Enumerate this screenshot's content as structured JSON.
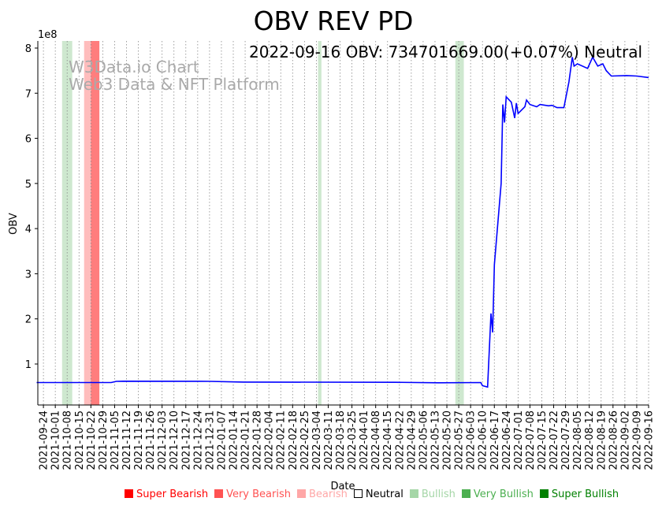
{
  "chart_data": {
    "type": "line",
    "title": "OBV REV PD",
    "annotation": "2022-09-16 OBV: 734701669.00(+0.07%) Neutral",
    "watermark": [
      "W3Data.io Chart",
      "Web3 Data & NFT Platform"
    ],
    "xlabel": "Date",
    "ylabel": "OBV",
    "y_offset_label": "1e8",
    "y_scale": 100000000,
    "ylim": [
      0.092,
      8.157
    ],
    "xlim": [
      "2021-09-20",
      "2022-09-16"
    ],
    "yticks": [
      1,
      2,
      3,
      4,
      5,
      6,
      7,
      8
    ],
    "xticks": [
      "2021-09-24",
      "2021-10-01",
      "2021-10-08",
      "2021-10-15",
      "2021-10-22",
      "2021-10-29",
      "2021-11-05",
      "2021-11-12",
      "2021-11-19",
      "2021-11-26",
      "2021-12-03",
      "2021-12-10",
      "2021-12-17",
      "2021-12-24",
      "2021-12-31",
      "2022-01-07",
      "2022-01-14",
      "2022-01-21",
      "2022-01-28",
      "2022-02-04",
      "2022-02-11",
      "2022-02-18",
      "2022-02-25",
      "2022-03-04",
      "2022-03-11",
      "2022-03-18",
      "2022-03-25",
      "2022-04-01",
      "2022-04-08",
      "2022-04-15",
      "2022-04-22",
      "2022-04-29",
      "2022-05-06",
      "2022-05-13",
      "2022-05-20",
      "2022-05-27",
      "2022-06-03",
      "2022-06-10",
      "2022-06-17",
      "2022-06-24",
      "2022-07-01",
      "2022-07-08",
      "2022-07-15",
      "2022-07-22",
      "2022-07-29",
      "2022-08-05",
      "2022-08-12",
      "2022-08-19",
      "2022-08-26",
      "2022-09-02",
      "2022-09-09",
      "2022-09-16"
    ],
    "grid": "vertical dotted",
    "series": [
      {
        "name": "OBV",
        "color": "#0000ff",
        "points": [
          [
            "2021-09-20",
            0.59
          ],
          [
            "2021-11-03",
            0.59
          ],
          [
            "2021-11-06",
            0.615
          ],
          [
            "2021-11-10",
            0.62
          ],
          [
            "2021-12-31",
            0.615
          ],
          [
            "2022-01-20",
            0.6
          ],
          [
            "2022-04-20",
            0.595
          ],
          [
            "2022-05-15",
            0.585
          ],
          [
            "2022-06-09",
            0.59
          ],
          [
            "2022-06-10",
            0.52
          ],
          [
            "2022-06-13",
            0.49
          ],
          [
            "2022-06-15",
            2.12
          ],
          [
            "2022-06-16",
            1.7
          ],
          [
            "2022-06-17",
            3.2
          ],
          [
            "2022-06-21",
            5.0
          ],
          [
            "2022-06-22",
            6.75
          ],
          [
            "2022-06-23",
            6.35
          ],
          [
            "2022-06-24",
            6.92
          ],
          [
            "2022-06-27",
            6.8
          ],
          [
            "2022-06-29",
            6.45
          ],
          [
            "2022-06-30",
            6.78
          ],
          [
            "2022-07-01",
            6.55
          ],
          [
            "2022-07-05",
            6.7
          ],
          [
            "2022-07-06",
            6.85
          ],
          [
            "2022-07-08",
            6.75
          ],
          [
            "2022-07-12",
            6.7
          ],
          [
            "2022-07-14",
            6.75
          ],
          [
            "2022-07-19",
            6.72
          ],
          [
            "2022-07-21",
            6.73
          ],
          [
            "2022-07-24",
            6.68
          ],
          [
            "2022-07-28",
            6.68
          ],
          [
            "2022-07-31",
            7.25
          ],
          [
            "2022-08-02",
            7.8
          ],
          [
            "2022-08-03",
            7.6
          ],
          [
            "2022-08-05",
            7.65
          ],
          [
            "2022-08-11",
            7.55
          ],
          [
            "2022-08-14",
            7.8
          ],
          [
            "2022-08-17",
            7.6
          ],
          [
            "2022-08-20",
            7.65
          ],
          [
            "2022-08-22",
            7.5
          ],
          [
            "2022-08-25",
            7.38
          ],
          [
            "2022-09-03",
            7.39
          ],
          [
            "2022-09-09",
            7.38
          ],
          [
            "2022-09-16",
            7.347
          ]
        ]
      }
    ],
    "bands": [
      {
        "start": "2021-10-05",
        "end": "2021-10-11",
        "signal": "Bullish"
      },
      {
        "start": "2021-10-18",
        "end": "2021-10-22",
        "signal": "Bearish"
      },
      {
        "start": "2021-10-22",
        "end": "2021-10-27",
        "signal": "Very Bearish"
      },
      {
        "start": "2022-03-05",
        "end": "2022-03-07",
        "signal": "Bullish"
      },
      {
        "start": "2022-05-25",
        "end": "2022-05-30",
        "signal": "Bullish"
      }
    ],
    "legend": [
      {
        "label": "Super Bearish",
        "color": "#ff0000"
      },
      {
        "label": "Very Bearish",
        "color": "#ff5252"
      },
      {
        "label": "Bearish",
        "color": "#ffa7a7"
      },
      {
        "label": "Neutral",
        "color": "#000000",
        "hollow": true
      },
      {
        "label": "Bullish",
        "color": "#a5d6a7"
      },
      {
        "label": "Very Bullish",
        "color": "#4caf50"
      },
      {
        "label": "Super Bullish",
        "color": "#008000"
      }
    ],
    "legend_position": "bottom"
  }
}
